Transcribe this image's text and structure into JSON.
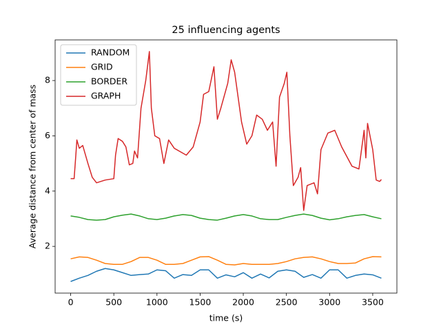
{
  "chart_data": {
    "type": "line",
    "title": "25 influencing agents",
    "x_label": "time (s)",
    "y_label": "Average distance from center of mass",
    "x": [
      0,
      100,
      200,
      300,
      400,
      500,
      600,
      700,
      800,
      900,
      1000,
      1100,
      1200,
      1300,
      1400,
      1500,
      1600,
      1700,
      1800,
      1900,
      2000,
      2100,
      2200,
      2300,
      2400,
      2500,
      2600,
      2700,
      2800,
      2900,
      3000,
      3100,
      3200,
      3300,
      3400,
      3500,
      3600
    ],
    "series": [
      {
        "name": "RANDOM",
        "color": "#1f77b4",
        "values": [
          0.73,
          0.85,
          0.95,
          1.1,
          1.2,
          1.15,
          1.05,
          0.95,
          0.98,
          1.0,
          1.15,
          1.12,
          0.85,
          0.98,
          0.95,
          1.15,
          1.15,
          0.85,
          0.97,
          0.9,
          1.05,
          0.85,
          1.0,
          0.86,
          1.1,
          1.15,
          1.1,
          0.88,
          0.98,
          0.85,
          1.15,
          1.15,
          0.85,
          0.95,
          1.0,
          0.97,
          0.85
        ]
      },
      {
        "name": "GRID",
        "color": "#ff7f0e",
        "values": [
          1.55,
          1.62,
          1.6,
          1.5,
          1.38,
          1.35,
          1.35,
          1.45,
          1.6,
          1.6,
          1.5,
          1.35,
          1.35,
          1.38,
          1.5,
          1.62,
          1.63,
          1.5,
          1.35,
          1.33,
          1.38,
          1.35,
          1.35,
          1.35,
          1.38,
          1.45,
          1.55,
          1.6,
          1.62,
          1.55,
          1.45,
          1.38,
          1.38,
          1.4,
          1.55,
          1.63,
          1.62
        ]
      },
      {
        "name": "BORDER",
        "color": "#2ca02c",
        "values": [
          3.1,
          3.05,
          2.97,
          2.95,
          2.97,
          3.07,
          3.13,
          3.17,
          3.1,
          3.0,
          2.97,
          3.02,
          3.1,
          3.15,
          3.12,
          3.02,
          2.97,
          2.95,
          3.02,
          3.1,
          3.15,
          3.1,
          3.0,
          2.97,
          2.97,
          3.05,
          3.12,
          3.17,
          3.12,
          3.02,
          2.96,
          3.0,
          3.07,
          3.12,
          3.15,
          3.07,
          3.0
        ]
      },
      {
        "name": "GRAPH",
        "color": "#d62728",
        "x": [
          0,
          40,
          60,
          72,
          100,
          140,
          200,
          250,
          300,
          400,
          500,
          520,
          550,
          600,
          640,
          680,
          720,
          740,
          775,
          815,
          870,
          912,
          935,
          975,
          1030,
          1080,
          1135,
          1200,
          1340,
          1420,
          1500,
          1540,
          1600,
          1660,
          1700,
          1740,
          1820,
          1860,
          1900,
          1980,
          2040,
          2100,
          2155,
          2220,
          2280,
          2340,
          2380,
          2420,
          2475,
          2505,
          2540,
          2580,
          2635,
          2665,
          2700,
          2740,
          2820,
          2860,
          2900,
          2980,
          3060,
          3140,
          3260,
          3340,
          3400,
          3420,
          3440,
          3500,
          3540,
          3580,
          3600
        ],
        "values": [
          4.45,
          4.45,
          5.3,
          5.85,
          5.55,
          5.65,
          5.0,
          4.5,
          4.3,
          4.4,
          4.45,
          5.3,
          5.9,
          5.8,
          5.6,
          4.95,
          5.0,
          5.45,
          5.2,
          7.0,
          8.0,
          9.05,
          7.0,
          6.0,
          5.9,
          5.0,
          5.85,
          5.55,
          5.3,
          5.6,
          6.5,
          7.5,
          7.6,
          8.5,
          6.6,
          7.0,
          7.9,
          8.75,
          8.3,
          6.5,
          5.7,
          6.0,
          6.75,
          6.6,
          6.2,
          6.5,
          4.9,
          7.4,
          7.9,
          8.3,
          6.0,
          4.2,
          4.5,
          4.85,
          3.3,
          4.2,
          4.3,
          3.9,
          5.5,
          6.1,
          6.2,
          5.6,
          4.9,
          4.8,
          6.2,
          5.2,
          6.45,
          5.5,
          4.4,
          4.35,
          4.42
        ]
      }
    ],
    "xlim": [
      -180,
      3780
    ],
    "ylim": [
      0.31,
      9.47
    ],
    "xticks": [
      0,
      500,
      1000,
      1500,
      2000,
      2500,
      3000,
      3500
    ],
    "yticks": [
      2,
      4,
      6,
      8
    ],
    "legend": "upper left",
    "grid": false
  }
}
